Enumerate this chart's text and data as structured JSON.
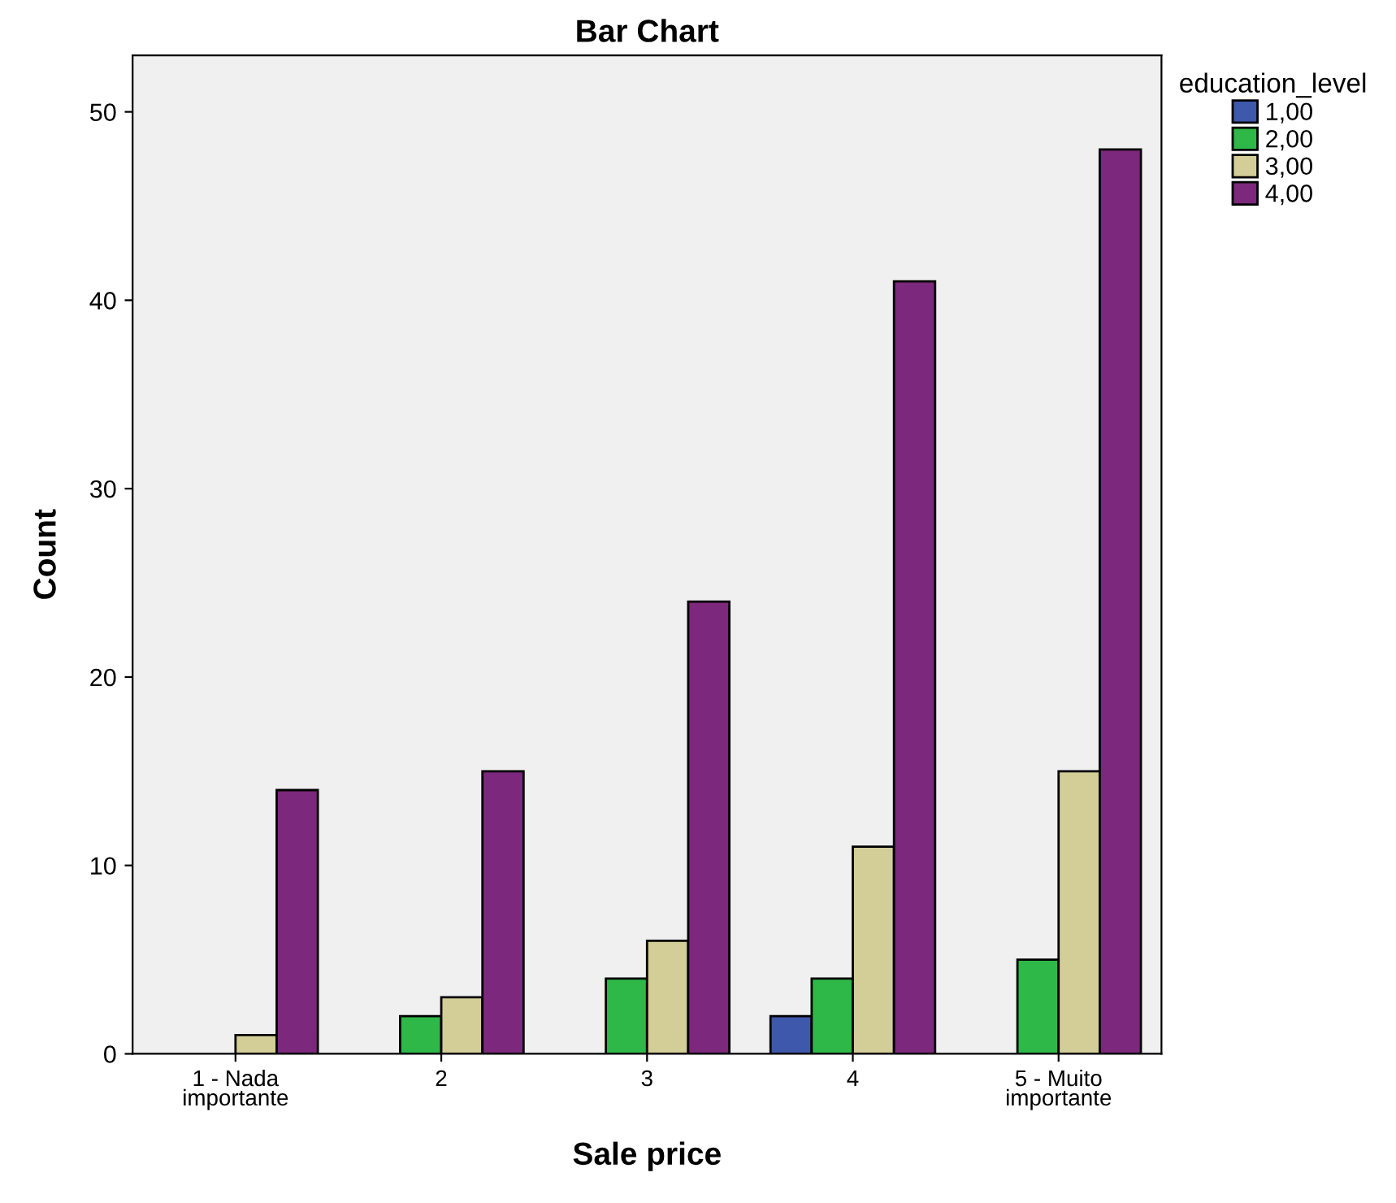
{
  "chart_data": {
    "type": "bar",
    "title": "Bar Chart",
    "xlabel": "Sale price",
    "ylabel": "Count",
    "legend_title": "education_level",
    "categories": [
      "1 - Nada\nimportante",
      "2",
      "3",
      "4",
      "5 - Muito\nimportante"
    ],
    "series": [
      {
        "name": "1,00",
        "color": "#3e58ac",
        "values": [
          null,
          null,
          null,
          2,
          null
        ]
      },
      {
        "name": "2,00",
        "color": "#2eb848",
        "values": [
          null,
          2,
          4,
          4,
          5
        ]
      },
      {
        "name": "3,00",
        "color": "#d3ce97",
        "values": [
          1,
          3,
          6,
          11,
          15
        ]
      },
      {
        "name": "4,00",
        "color": "#7c287c",
        "values": [
          14,
          15,
          24,
          41,
          48
        ]
      }
    ],
    "ylim": [
      0,
      53
    ],
    "yticks": [
      0,
      10,
      20,
      30,
      40,
      50
    ],
    "grid": false,
    "legend": "top right"
  }
}
